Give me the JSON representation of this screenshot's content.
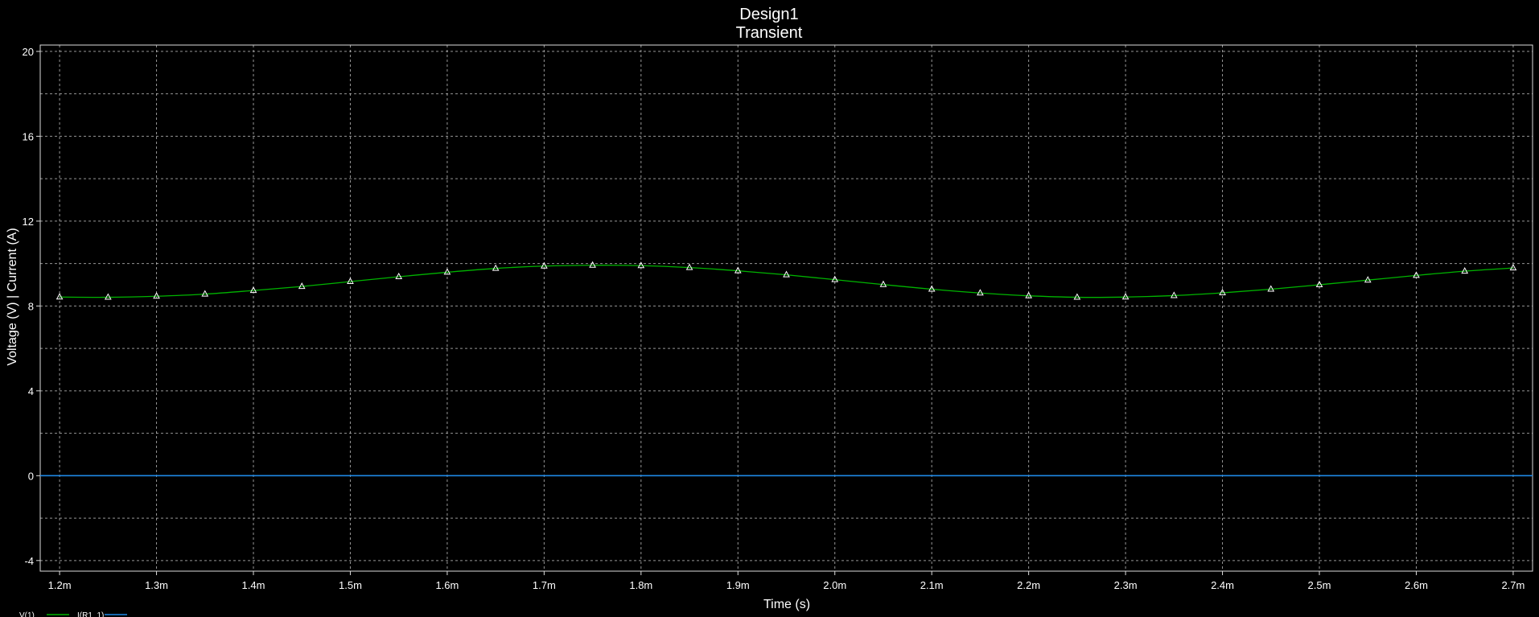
{
  "chart_data": {
    "type": "line",
    "title": "Design1",
    "subtitle": "Transient",
    "xlabel": "Time (s)",
    "ylabel": "Voltage (V) | Current (A)",
    "xlim": [
      0.00118,
      0.00272
    ],
    "ylim": [
      -4.5,
      20.3
    ],
    "grid": true,
    "x_tick_values": [
      0.0012,
      0.0013,
      0.0014,
      0.0015,
      0.0016,
      0.0017,
      0.0018,
      0.0019,
      0.002,
      0.0021,
      0.0022,
      0.0023,
      0.0024,
      0.0025,
      0.0026,
      0.0027
    ],
    "x_tick_labels": [
      "1.2m",
      "1.3m",
      "1.4m",
      "1.5m",
      "1.6m",
      "1.7m",
      "1.8m",
      "1.9m",
      "2.0m",
      "2.1m",
      "2.2m",
      "2.3m",
      "2.4m",
      "2.5m",
      "2.6m",
      "2.7m"
    ],
    "y_tick_values": [
      -4,
      0,
      4,
      8,
      12,
      16,
      20
    ],
    "y_tick_labels": [
      "-4",
      "0",
      "4",
      "8",
      "12",
      "16",
      "20"
    ],
    "y_minor_grid": [
      -2,
      2,
      6,
      10,
      14,
      18
    ],
    "legend_position": "bottom-left",
    "series": [
      {
        "name": "V(1)",
        "color": "#00b400",
        "marker": "triangle",
        "marker_color": "#ffffff",
        "x": [
          0.0012,
          0.00125,
          0.0013,
          0.00135,
          0.0014,
          0.00145,
          0.0015,
          0.00155,
          0.0016,
          0.00165,
          0.0017,
          0.00175,
          0.0018,
          0.00185,
          0.0019,
          0.00195,
          0.002,
          0.00205,
          0.0021,
          0.00215,
          0.0022,
          0.00225,
          0.0023,
          0.00235,
          0.0024,
          0.00245,
          0.0025,
          0.00255,
          0.0026,
          0.00265,
          0.0027
        ],
        "values": [
          8.42,
          8.41,
          8.46,
          8.56,
          8.73,
          8.92,
          9.15,
          9.38,
          9.59,
          9.77,
          9.88,
          9.92,
          9.9,
          9.81,
          9.66,
          9.47,
          9.24,
          9.01,
          8.79,
          8.61,
          8.48,
          8.41,
          8.42,
          8.49,
          8.62,
          8.79,
          9.0,
          9.22,
          9.44,
          9.64,
          9.79
        ]
      },
      {
        "name": "I(R1_1)",
        "color": "#1e88e5",
        "marker": "none",
        "x": [
          0.00118,
          0.00272
        ],
        "values": [
          0,
          0
        ]
      }
    ]
  }
}
